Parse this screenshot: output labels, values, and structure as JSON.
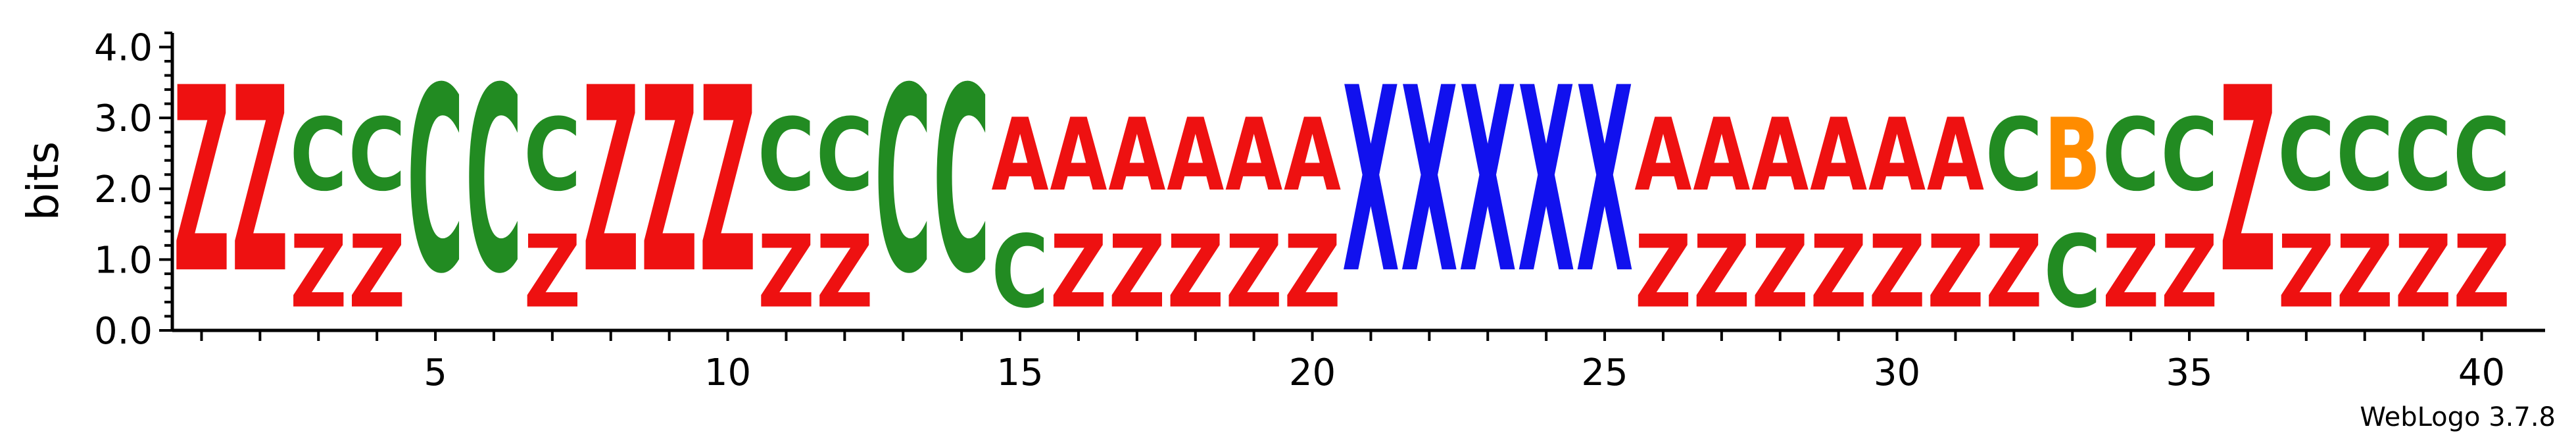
{
  "chart_data": {
    "type": "sequence-logo",
    "ylabel": "bits",
    "ylim": [
      0,
      4.2
    ],
    "y_ticks": [
      "0.0",
      "1.0",
      "2.0",
      "3.0",
      "4.0"
    ],
    "x_ticks": [
      "5",
      "10",
      "15",
      "20",
      "25",
      "30",
      "35",
      "40"
    ],
    "credit": "WebLogo 3.7.8",
    "colors": {
      "Z": "#ee1111",
      "C": "#228b22",
      "A": "#ee1111",
      "X": "#1111ee",
      "B": "#ff8c00"
    },
    "positions": [
      {
        "pos": 1,
        "stack": [
          {
            "letter": "Z",
            "bits": 4.2
          }
        ]
      },
      {
        "pos": 2,
        "stack": [
          {
            "letter": "Z",
            "bits": 4.2
          }
        ]
      },
      {
        "pos": 3,
        "stack": [
          {
            "letter": "Z",
            "bits": 1.65
          },
          {
            "letter": "C",
            "bits": 1.65
          }
        ]
      },
      {
        "pos": 4,
        "stack": [
          {
            "letter": "Z",
            "bits": 1.65
          },
          {
            "letter": "C",
            "bits": 1.65
          }
        ]
      },
      {
        "pos": 5,
        "stack": [
          {
            "letter": "C",
            "bits": 4.2
          }
        ]
      },
      {
        "pos": 6,
        "stack": [
          {
            "letter": "C",
            "bits": 4.2
          }
        ]
      },
      {
        "pos": 7,
        "stack": [
          {
            "letter": "Z",
            "bits": 1.65
          },
          {
            "letter": "C",
            "bits": 1.65
          }
        ]
      },
      {
        "pos": 8,
        "stack": [
          {
            "letter": "Z",
            "bits": 4.2
          }
        ]
      },
      {
        "pos": 9,
        "stack": [
          {
            "letter": "Z",
            "bits": 4.2
          }
        ]
      },
      {
        "pos": 10,
        "stack": [
          {
            "letter": "Z",
            "bits": 4.2
          }
        ]
      },
      {
        "pos": 11,
        "stack": [
          {
            "letter": "Z",
            "bits": 1.65
          },
          {
            "letter": "C",
            "bits": 1.65
          }
        ]
      },
      {
        "pos": 12,
        "stack": [
          {
            "letter": "Z",
            "bits": 1.65
          },
          {
            "letter": "C",
            "bits": 1.65
          }
        ]
      },
      {
        "pos": 13,
        "stack": [
          {
            "letter": "C",
            "bits": 4.2
          }
        ]
      },
      {
        "pos": 14,
        "stack": [
          {
            "letter": "C",
            "bits": 4.2
          }
        ]
      },
      {
        "pos": 15,
        "stack": [
          {
            "letter": "C",
            "bits": 1.65
          },
          {
            "letter": "A",
            "bits": 1.65
          }
        ]
      },
      {
        "pos": 16,
        "stack": [
          {
            "letter": "Z",
            "bits": 1.65
          },
          {
            "letter": "A",
            "bits": 1.65
          }
        ]
      },
      {
        "pos": 17,
        "stack": [
          {
            "letter": "Z",
            "bits": 1.65
          },
          {
            "letter": "A",
            "bits": 1.65
          }
        ]
      },
      {
        "pos": 18,
        "stack": [
          {
            "letter": "Z",
            "bits": 1.65
          },
          {
            "letter": "A",
            "bits": 1.65
          }
        ]
      },
      {
        "pos": 19,
        "stack": [
          {
            "letter": "Z",
            "bits": 1.65
          },
          {
            "letter": "A",
            "bits": 1.65
          }
        ]
      },
      {
        "pos": 20,
        "stack": [
          {
            "letter": "Z",
            "bits": 1.65
          },
          {
            "letter": "A",
            "bits": 1.65
          }
        ]
      },
      {
        "pos": 21,
        "stack": [
          {
            "letter": "X",
            "bits": 4.2
          }
        ]
      },
      {
        "pos": 22,
        "stack": [
          {
            "letter": "X",
            "bits": 4.2
          }
        ]
      },
      {
        "pos": 23,
        "stack": [
          {
            "letter": "X",
            "bits": 4.2
          }
        ]
      },
      {
        "pos": 24,
        "stack": [
          {
            "letter": "X",
            "bits": 4.2
          }
        ]
      },
      {
        "pos": 25,
        "stack": [
          {
            "letter": "X",
            "bits": 4.2
          }
        ]
      },
      {
        "pos": 26,
        "stack": [
          {
            "letter": "Z",
            "bits": 1.65
          },
          {
            "letter": "A",
            "bits": 1.65
          }
        ]
      },
      {
        "pos": 27,
        "stack": [
          {
            "letter": "Z",
            "bits": 1.65
          },
          {
            "letter": "A",
            "bits": 1.65
          }
        ]
      },
      {
        "pos": 28,
        "stack": [
          {
            "letter": "Z",
            "bits": 1.65
          },
          {
            "letter": "A",
            "bits": 1.65
          }
        ]
      },
      {
        "pos": 29,
        "stack": [
          {
            "letter": "Z",
            "bits": 1.65
          },
          {
            "letter": "A",
            "bits": 1.65
          }
        ]
      },
      {
        "pos": 30,
        "stack": [
          {
            "letter": "Z",
            "bits": 1.65
          },
          {
            "letter": "A",
            "bits": 1.65
          }
        ]
      },
      {
        "pos": 31,
        "stack": [
          {
            "letter": "Z",
            "bits": 1.65
          },
          {
            "letter": "A",
            "bits": 1.65
          }
        ]
      },
      {
        "pos": 32,
        "stack": [
          {
            "letter": "Z",
            "bits": 1.65
          },
          {
            "letter": "C",
            "bits": 1.65
          }
        ]
      },
      {
        "pos": 33,
        "stack": [
          {
            "letter": "C",
            "bits": 1.65
          },
          {
            "letter": "B",
            "bits": 1.65
          }
        ]
      },
      {
        "pos": 34,
        "stack": [
          {
            "letter": "Z",
            "bits": 1.65
          },
          {
            "letter": "C",
            "bits": 1.65
          }
        ]
      },
      {
        "pos": 35,
        "stack": [
          {
            "letter": "Z",
            "bits": 1.65
          },
          {
            "letter": "C",
            "bits": 1.65
          }
        ]
      },
      {
        "pos": 36,
        "stack": [
          {
            "letter": "Z",
            "bits": 4.2
          }
        ]
      },
      {
        "pos": 37,
        "stack": [
          {
            "letter": "Z",
            "bits": 1.65
          },
          {
            "letter": "C",
            "bits": 1.65
          }
        ]
      },
      {
        "pos": 38,
        "stack": [
          {
            "letter": "Z",
            "bits": 1.65
          },
          {
            "letter": "C",
            "bits": 1.65
          }
        ]
      },
      {
        "pos": 39,
        "stack": [
          {
            "letter": "Z",
            "bits": 1.65
          },
          {
            "letter": "C",
            "bits": 1.65
          }
        ]
      },
      {
        "pos": 40,
        "stack": [
          {
            "letter": "Z",
            "bits": 1.65
          },
          {
            "letter": "C",
            "bits": 1.65
          }
        ]
      }
    ]
  }
}
